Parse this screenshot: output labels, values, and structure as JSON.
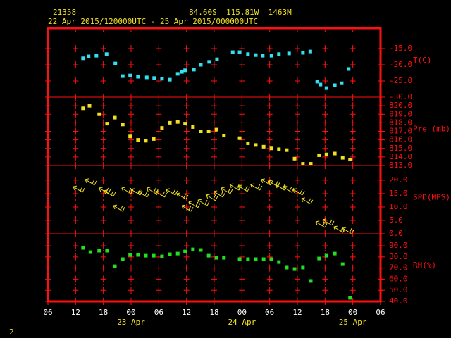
{
  "header": {
    "station": "21358",
    "location": "84.60S  115.81W  1463M",
    "period": "22 Apr 2015/120000UTC - 25 Apr 2015/000000UTC"
  },
  "footer": "2",
  "chart_data": [
    {
      "type": "scatter",
      "y_label": "T(C)",
      "color": "#33e0f0",
      "xlim": [
        0,
        72
      ],
      "ylim": [
        -30,
        -8.7
      ],
      "yticks": [
        {
          "value": -30,
          "label": "-30.0"
        },
        {
          "value": -25,
          "label": "-25.0"
        },
        {
          "value": -20,
          "label": "-20.0"
        },
        {
          "value": -15,
          "label": "-15.0"
        }
      ],
      "x": [
        7.6,
        8.8,
        10.5,
        12.7,
        14.6,
        16.2,
        17.8,
        19.5,
        21.4,
        23.0,
        24.7,
        26.4,
        28.1,
        29.0,
        29.7,
        31.6,
        33.1,
        34.9,
        36.6,
        40.0,
        41.5,
        43.3,
        45.0,
        46.5,
        48.4,
        50.0,
        52.2,
        55.2,
        56.8,
        58.3,
        59.0,
        60.3,
        62.1,
        63.6,
        65.1
      ],
      "values": [
        -18.0,
        -17.4,
        -17.2,
        -16.7,
        -19.6,
        -23.5,
        -23.3,
        -23.7,
        -23.9,
        -24.1,
        -24.3,
        -24.6,
        -22.8,
        -22.2,
        -21.7,
        -21.5,
        -20.0,
        -19.1,
        -18.3,
        -16.1,
        -16.1,
        -16.7,
        -17.0,
        -17.2,
        -17.2,
        -16.7,
        -16.5,
        -16.3,
        -15.9,
        -25.2,
        -26.1,
        -27.2,
        -26.3,
        -25.7,
        -21.3
      ]
    },
    {
      "type": "scatter",
      "y_label": "Pre (mb)",
      "color": "#f0e020",
      "xlim": [
        0,
        72
      ],
      "ylim": [
        813,
        821
      ],
      "yticks": [
        {
          "value": 813,
          "label": "813.0"
        },
        {
          "value": 814,
          "label": "814.0"
        },
        {
          "value": 815,
          "label": "815.0"
        },
        {
          "value": 816,
          "label": "816.0"
        },
        {
          "value": 817,
          "label": "817.0"
        },
        {
          "value": 818,
          "label": "818.0"
        },
        {
          "value": 819,
          "label": "819.0"
        },
        {
          "value": 820,
          "label": "820.0"
        }
      ],
      "x": [
        7.6,
        9.0,
        11.1,
        12.8,
        14.5,
        16.2,
        17.8,
        19.5,
        21.2,
        22.9,
        24.7,
        26.4,
        28.1,
        29.7,
        31.4,
        33.1,
        34.8,
        36.5,
        38.1,
        41.5,
        43.3,
        45.0,
        46.7,
        48.4,
        50.0,
        51.7,
        53.4,
        55.2,
        56.9,
        58.7,
        60.3,
        62.1,
        63.8,
        65.4
      ],
      "values": [
        819.7,
        820.0,
        819.0,
        817.9,
        818.6,
        817.8,
        816.4,
        816.0,
        815.9,
        816.1,
        817.4,
        818.0,
        818.1,
        817.9,
        817.5,
        817.0,
        817.0,
        817.2,
        816.5,
        816.2,
        815.6,
        815.4,
        815.2,
        815.0,
        814.9,
        814.8,
        813.8,
        813.2,
        813.2,
        814.2,
        814.3,
        814.4,
        813.9,
        813.7
      ]
    },
    {
      "type": "wind",
      "y_label": "SPD(MPS)",
      "color": "#f0e020",
      "xlim": [
        0,
        72
      ],
      "ylim": [
        0,
        25.5
      ],
      "yticks": [
        {
          "value": 0,
          "label": "0.0"
        },
        {
          "value": 5,
          "label": "5.0"
        },
        {
          "value": 10,
          "label": "10.0"
        },
        {
          "value": 15,
          "label": "15.0"
        },
        {
          "value": 20,
          "label": "20.0"
        }
      ],
      "x": [
        6.1,
        8.7,
        11.7,
        12.8,
        14.8,
        16.6,
        18.6,
        20.1,
        22.0,
        23.9,
        26.2,
        28.5,
        29.6,
        31.1,
        33.1,
        34.9,
        36.5,
        38.1,
        40.0,
        41.8,
        44.5,
        46.8,
        48.4,
        49.9,
        51.4,
        53.7,
        55.5,
        58.6,
        60.1,
        62.5,
        64.4
      ],
      "values": [
        16.8,
        19.5,
        16.3,
        15.3,
        9.7,
        16.3,
        15.8,
        15.0,
        16.3,
        15.0,
        15.8,
        14.2,
        9.7,
        11.1,
        11.8,
        13.7,
        15.0,
        16.3,
        17.6,
        17.1,
        17.6,
        19.5,
        18.9,
        17.6,
        16.8,
        15.8,
        12.4,
        3.7,
        4.5,
        1.8,
        1.3
      ]
    },
    {
      "type": "scatter",
      "y_label": "RH(%)",
      "color": "#20e020",
      "xlim": [
        0,
        72
      ],
      "ylim": [
        40,
        100.8
      ],
      "yticks": [
        {
          "value": 40,
          "label": "40.0"
        },
        {
          "value": 50,
          "label": "50.0"
        },
        {
          "value": 60,
          "label": "60.0"
        },
        {
          "value": 70,
          "label": "70.0"
        },
        {
          "value": 80,
          "label": "80.0"
        },
        {
          "value": 90,
          "label": "90.0"
        }
      ],
      "x": [
        7.6,
        9.2,
        11.1,
        12.8,
        14.5,
        16.2,
        17.8,
        19.5,
        21.2,
        22.9,
        24.7,
        26.4,
        28.1,
        29.7,
        31.4,
        33.1,
        34.8,
        36.5,
        38.1,
        41.5,
        43.3,
        45.0,
        46.7,
        48.4,
        50.0,
        51.7,
        53.4,
        55.2,
        56.9,
        58.7,
        60.3,
        62.1,
        63.8,
        65.4
      ],
      "values": [
        88.1,
        84.3,
        85.6,
        85.6,
        71.6,
        78.0,
        81.8,
        81.8,
        81.1,
        81.1,
        80.5,
        82.4,
        83.0,
        84.9,
        86.8,
        86.2,
        81.1,
        79.2,
        79.2,
        78.0,
        78.0,
        78.0,
        78.0,
        78.0,
        75.4,
        70.4,
        69.1,
        70.4,
        58.4,
        78.6,
        81.1,
        83.0,
        73.5,
        43.2
      ],
      "xticks": [
        {
          "value": 0,
          "label": "06"
        },
        {
          "value": 6,
          "label": "12"
        },
        {
          "value": 12,
          "label": "18"
        },
        {
          "value": 18,
          "label": "00"
        },
        {
          "value": 24,
          "label": "06"
        },
        {
          "value": 30,
          "label": "12"
        },
        {
          "value": 36,
          "label": "18"
        },
        {
          "value": 42,
          "label": "00"
        },
        {
          "value": 48,
          "label": "06"
        },
        {
          "value": 54,
          "label": "12"
        },
        {
          "value": 60,
          "label": "18"
        },
        {
          "value": 66,
          "label": "00"
        },
        {
          "value": 72,
          "label": "06"
        }
      ],
      "date_labels": [
        {
          "value": 18,
          "label": "23 Apr"
        },
        {
          "value": 42,
          "label": "24 Apr"
        },
        {
          "value": 66,
          "label": "25 Apr"
        }
      ]
    }
  ]
}
